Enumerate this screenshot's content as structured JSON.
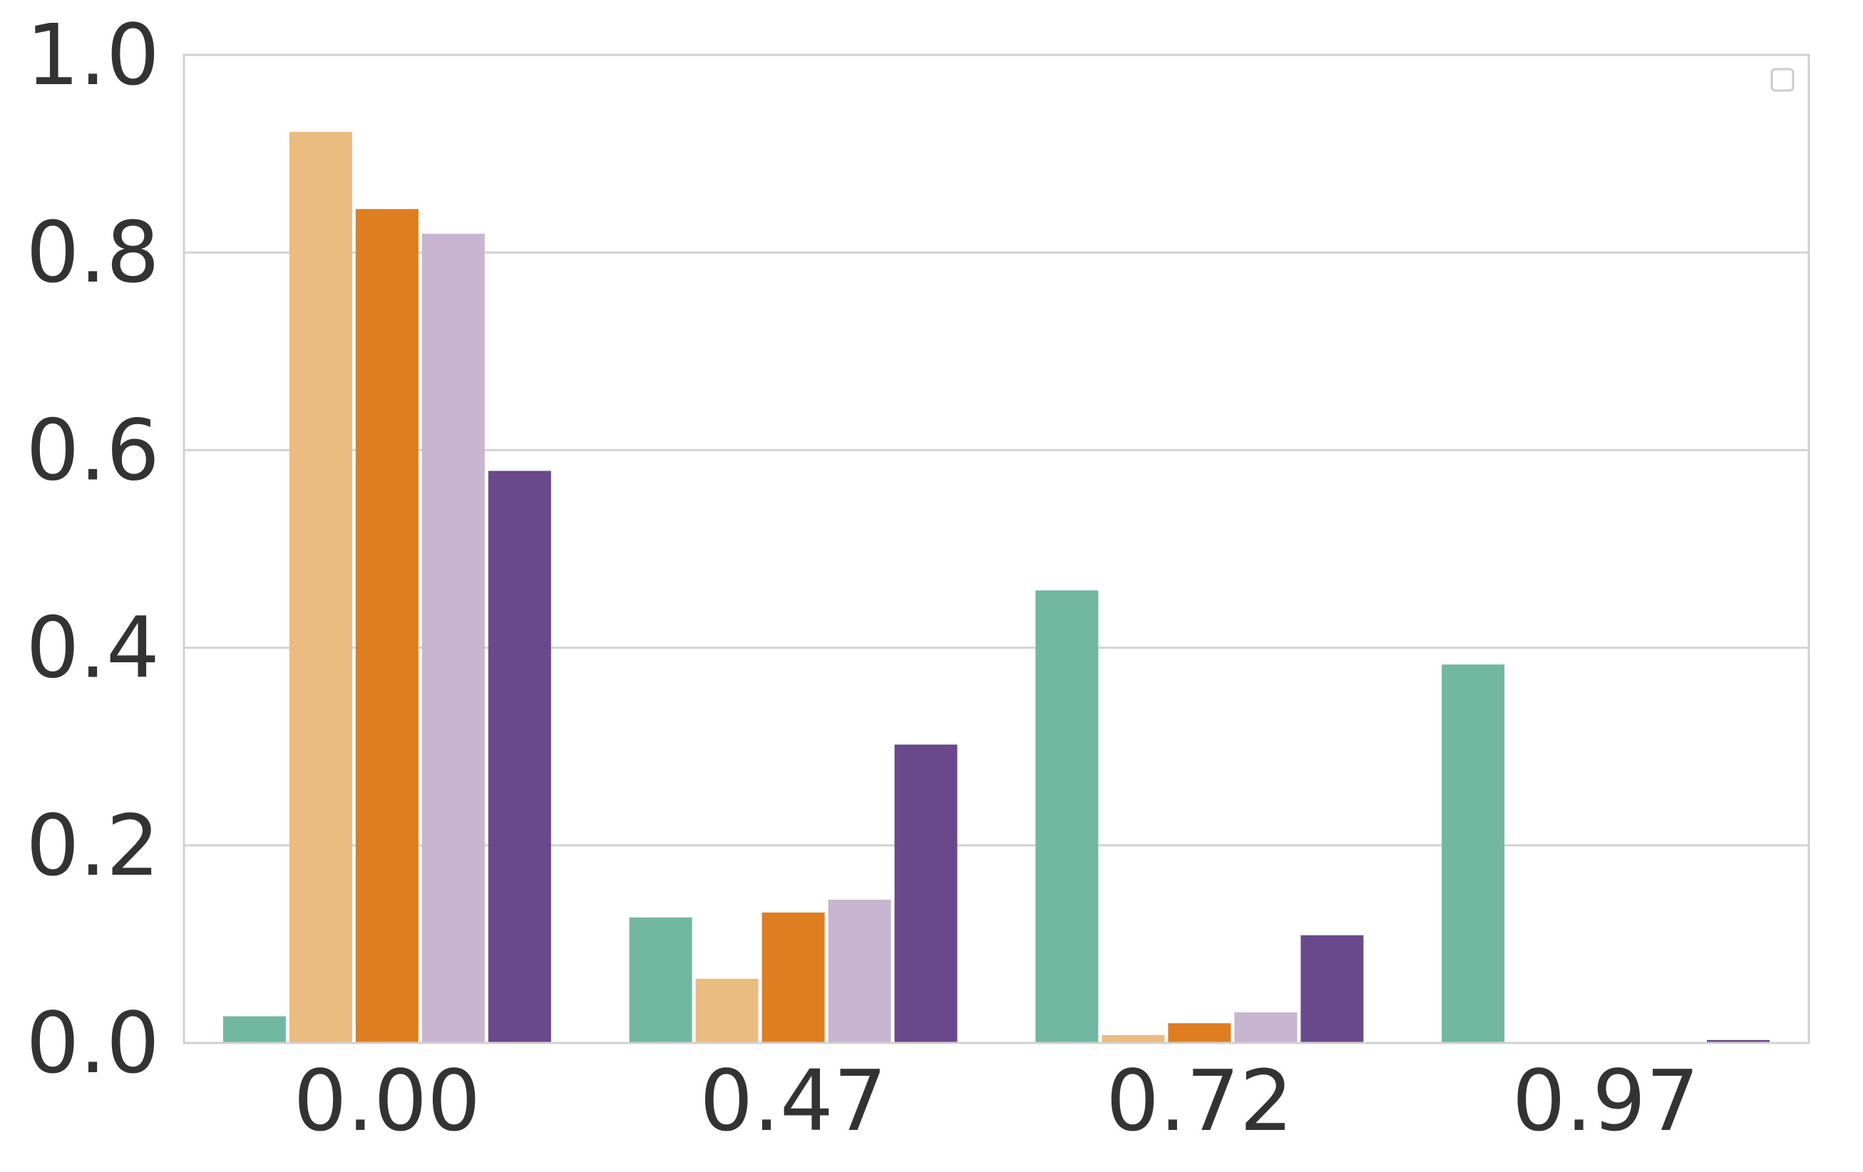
{
  "chart_data": {
    "type": "bar",
    "categories": [
      "0.00",
      "0.47",
      "0.72",
      "0.97"
    ],
    "series": [
      {
        "color": "#72b7a0",
        "values": [
          0.027,
          0.127,
          0.458,
          0.383
        ]
      },
      {
        "color": "#ebbc80",
        "values": [
          0.922,
          0.065,
          0.008,
          0.0
        ]
      },
      {
        "color": "#de7e20",
        "values": [
          0.844,
          0.132,
          0.02,
          0.0
        ]
      },
      {
        "color": "#c8b5d2",
        "values": [
          0.819,
          0.145,
          0.031,
          0.0
        ]
      },
      {
        "color": "#69498b",
        "values": [
          0.579,
          0.302,
          0.109,
          0.003
        ]
      }
    ],
    "title": "",
    "xlabel": "",
    "ylabel": "",
    "ylim": [
      0,
      1.0
    ],
    "yticks": [
      "0.0",
      "0.2",
      "0.4",
      "0.6",
      "0.8",
      "1.0"
    ],
    "grid": "horizontal",
    "legend": "top-right (empty)"
  }
}
